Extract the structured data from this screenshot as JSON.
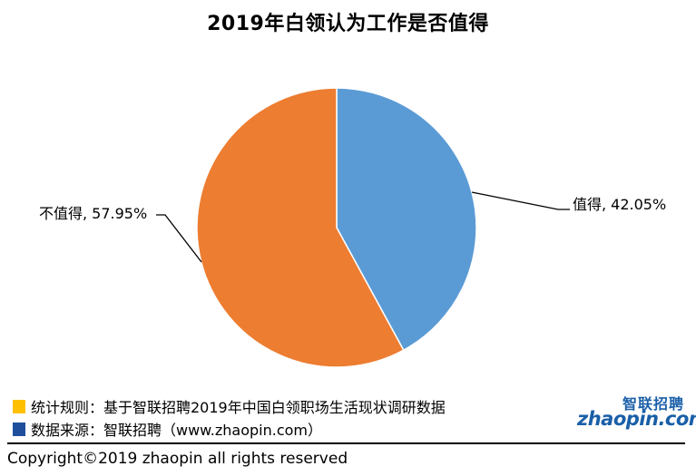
{
  "chart_data": {
    "type": "pie",
    "title": "2019年白领认为工作是否值得",
    "slices": [
      {
        "name": "值得",
        "value": 42.05,
        "label": "值得, 42.05%",
        "color": "#5b9bd5"
      },
      {
        "name": "不值得",
        "value": 57.95,
        "label": "不值得, 57.95%",
        "color": "#ed7d31"
      }
    ]
  },
  "footnotes": {
    "rule": {
      "text": "统计规则：基于智联招聘2019年中国白领职场生活现状调研数据",
      "color": "#ffc000"
    },
    "source": {
      "text": "数据来源：智联招聘（www.zhaopin.com）",
      "color": "#1f4e9c"
    }
  },
  "logo": {
    "cn": "智联招聘",
    "en": "zhaopin.com"
  },
  "copyright": "Copyright©2019 zhaopin all rights reserved"
}
